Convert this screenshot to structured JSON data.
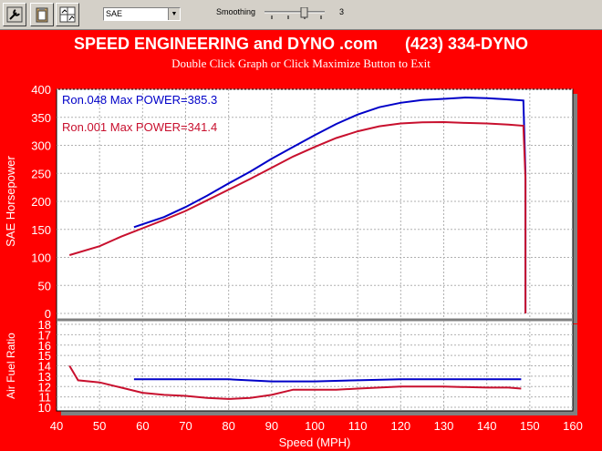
{
  "toolbar": {
    "buttons": [
      {
        "icon": "wrench-icon"
      },
      {
        "icon": "clipboard-icon"
      },
      {
        "icon": "chart-window-icon"
      }
    ],
    "standard_select": "SAE",
    "smoothing_label": "Smoothing",
    "smoothing_value": "3"
  },
  "header": {
    "title": "SPEED ENGINEERING and DYNO .com      (423) 334-DYNO",
    "subtitle": "Double Click Graph or Click Maximize Button to Exit"
  },
  "colors": {
    "background": "#ff0000",
    "run1": "#0000c8",
    "run2": "#c8102e"
  },
  "chart_data": [
    {
      "type": "line",
      "ylabel": "SAE Horsepower",
      "xlim": [
        40,
        160
      ],
      "ylim": [
        0,
        400
      ],
      "yticks": [
        "0",
        "50",
        "100",
        "150",
        "200",
        "250",
        "300",
        "350",
        "400"
      ],
      "grid": true,
      "legend": [
        {
          "text": "Ron.048  Max POWER=385.3",
          "color": "#0000c8"
        },
        {
          "text": "Ron.001  Max POWER=341.4",
          "color": "#c8102e"
        }
      ],
      "series": [
        {
          "name": "Ron.048",
          "color": "#0000c8",
          "x": [
            58,
            65,
            70,
            75,
            80,
            85,
            90,
            95,
            100,
            105,
            110,
            115,
            120,
            125,
            130,
            135,
            140,
            145,
            148.5,
            149,
            149
          ],
          "y": [
            154,
            172,
            190,
            210,
            232,
            253,
            276,
            297,
            318,
            338,
            355,
            368,
            376,
            381,
            383,
            385.3,
            384,
            382,
            380,
            250,
            0
          ]
        },
        {
          "name": "Ron.001",
          "color": "#c8102e",
          "x": [
            43,
            50,
            55,
            60,
            65,
            70,
            75,
            80,
            85,
            90,
            95,
            100,
            105,
            110,
            115,
            120,
            125,
            130,
            135,
            140,
            145,
            148.5,
            149,
            149
          ],
          "y": [
            104,
            120,
            137,
            152,
            167,
            183,
            202,
            221,
            240,
            260,
            280,
            297,
            313,
            325,
            334,
            339,
            341,
            341.4,
            340,
            339,
            337,
            335,
            240,
            0
          ]
        }
      ]
    },
    {
      "type": "line",
      "ylabel": "Air Fuel Ratio",
      "xlabel": "Speed (MPH)",
      "xlim": [
        40,
        160
      ],
      "ylim": [
        10,
        18
      ],
      "xticks": [
        "40",
        "50",
        "60",
        "70",
        "80",
        "90",
        "100",
        "110",
        "120",
        "130",
        "140",
        "150",
        "160"
      ],
      "yticks": [
        "10",
        "11",
        "12",
        "13",
        "14",
        "15",
        "16",
        "17",
        "18"
      ],
      "grid": true,
      "series": [
        {
          "name": "Ron.048",
          "color": "#0000c8",
          "x": [
            58,
            65,
            70,
            80,
            90,
            100,
            110,
            120,
            130,
            140,
            148
          ],
          "y": [
            12.7,
            12.7,
            12.7,
            12.7,
            12.5,
            12.5,
            12.6,
            12.7,
            12.7,
            12.7,
            12.7
          ]
        },
        {
          "name": "Ron.001",
          "color": "#c8102e",
          "x": [
            43,
            45,
            50,
            55,
            60,
            65,
            70,
            75,
            80,
            85,
            90,
            95,
            100,
            105,
            110,
            120,
            130,
            140,
            145,
            148
          ],
          "y": [
            14.0,
            12.6,
            12.4,
            11.9,
            11.4,
            11.2,
            11.1,
            10.9,
            10.8,
            10.9,
            11.2,
            11.7,
            11.7,
            11.7,
            11.8,
            12.0,
            12.0,
            11.9,
            11.9,
            11.8
          ]
        }
      ]
    }
  ]
}
